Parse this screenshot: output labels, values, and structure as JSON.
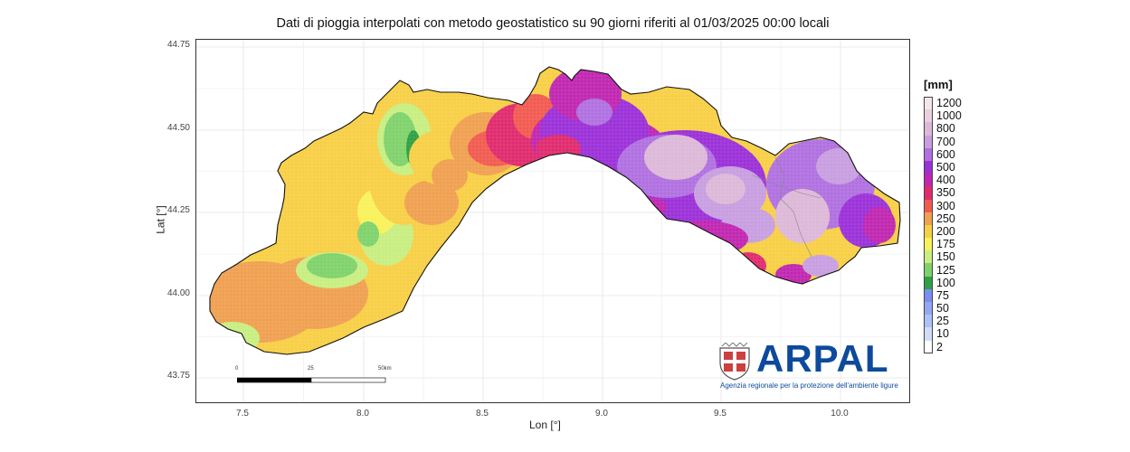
{
  "title": "Dati di pioggia interpolati con metodo geostatistico su 90 giorni riferiti al 01/03/2025 00:00 locali",
  "axes": {
    "xlabel": "Lon [°]",
    "ylabel": "Lat [°]",
    "xticks": [
      "7.5",
      "8.0",
      "8.5",
      "9.0",
      "9.5",
      "10.0"
    ],
    "yticks": [
      "44.75",
      "44.50",
      "44.25",
      "44.00",
      "43.75"
    ],
    "xlim": [
      7.3,
      10.3
    ],
    "ylim": [
      43.7,
      44.77
    ]
  },
  "legend": {
    "title": "[mm]",
    "entries": [
      {
        "label": "1200",
        "color": "#f5e6ec"
      },
      {
        "label": "1000",
        "color": "#e9cfe0"
      },
      {
        "label": "800",
        "color": "#ddb8d8"
      },
      {
        "label": "700",
        "color": "#c89ee0"
      },
      {
        "label": "600",
        "color": "#b070e0"
      },
      {
        "label": "500",
        "color": "#9b30d8"
      },
      {
        "label": "400",
        "color": "#c026b0"
      },
      {
        "label": "350",
        "color": "#e02a6e"
      },
      {
        "label": "300",
        "color": "#f25a50"
      },
      {
        "label": "250",
        "color": "#f0a050"
      },
      {
        "label": "200",
        "color": "#f7cf45"
      },
      {
        "label": "175",
        "color": "#f8f25a"
      },
      {
        "label": "150",
        "color": "#c8ee80"
      },
      {
        "label": "125",
        "color": "#7fd26b"
      },
      {
        "label": "100",
        "color": "#2fa043"
      },
      {
        "label": "75",
        "color": "#7b8ff0"
      },
      {
        "label": "50",
        "color": "#93a8f5"
      },
      {
        "label": "25",
        "color": "#aec0f7"
      },
      {
        "label": "10",
        "color": "#d0dcfa"
      },
      {
        "label": "2",
        "color": "#ffffff"
      }
    ]
  },
  "scalebar": {
    "labels": [
      "0",
      "25",
      "50km"
    ]
  },
  "logo": {
    "name": "ARPAL",
    "subtitle": "Agenzia regionale per la protezione dell'ambiente ligure",
    "color": "#0d4a9c"
  }
}
